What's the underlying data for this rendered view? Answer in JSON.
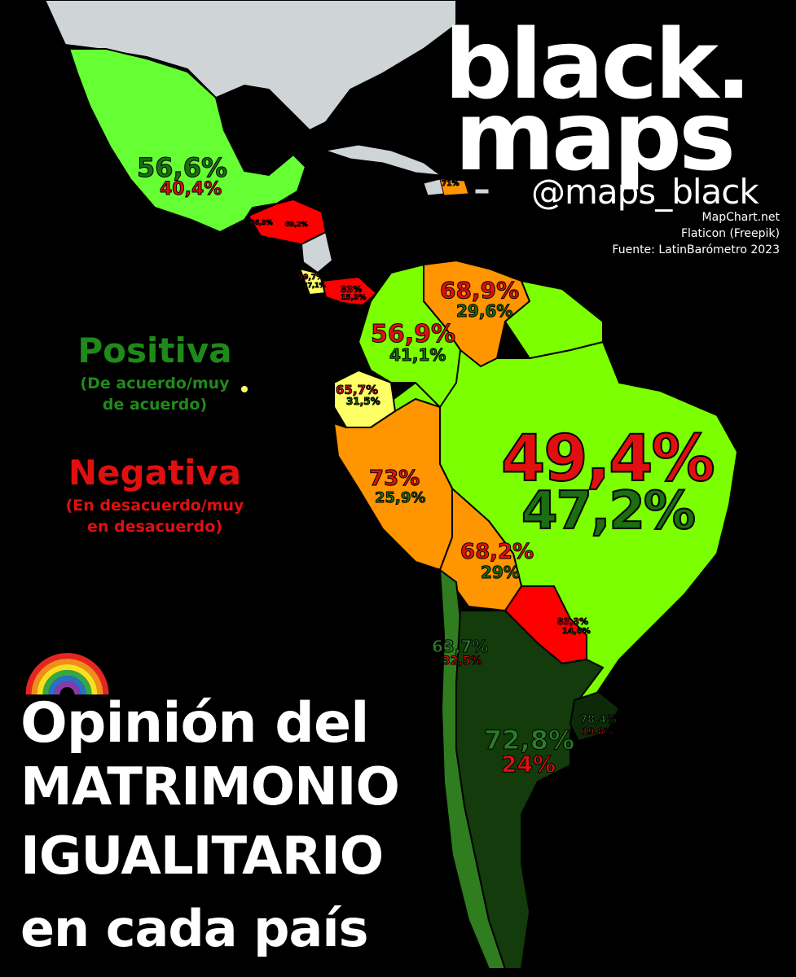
{
  "brand": {
    "line1": "black.",
    "line2": "maps",
    "handle": "@maps_black"
  },
  "credits": [
    "MapChart.net",
    "Flaticon (Freepik)",
    "Fuente: LatinBarómetro 2023"
  ],
  "legend": {
    "positive_title": "Positiva",
    "positive_desc_1": "(De acuerdo/muy",
    "positive_desc_2": "de acuerdo)",
    "negative_title": "Negativa",
    "negative_desc_1": "(En desacuerdo/muy",
    "negative_desc_2": "en desacuerdo)",
    "positive_color": "#1f8a1a",
    "negative_color": "#e01010"
  },
  "title": {
    "line1": "Opinión del",
    "line2": "MATRIMONIO",
    "line3": "IGUALITARIO",
    "line4": "en cada país"
  },
  "colors": {
    "background": "#000000",
    "north_america": "#cfd4d6",
    "light_green": "#7cff00",
    "orange": "#ff9500",
    "red": "#ff0000",
    "yellow": "#ffff66",
    "dark_green_1": "#2f7d1e",
    "dark_green_2": "#133b0b",
    "dark_green_3": "#0d2a08"
  },
  "countries": {
    "mexico": {
      "positive": "56,6%",
      "negative": "40,4%"
    },
    "dominican_republic": {
      "negative": "71%"
    },
    "guatemala": {
      "negative": "66,3%"
    },
    "honduras": {
      "negative": "69,2%"
    },
    "costa_rica": {
      "negative": "59,7%",
      "positive": "37,1%"
    },
    "panama": {
      "negative": "83%",
      "positive": "15,3%"
    },
    "venezuela": {
      "negative": "68,9%",
      "positive": "29,6%"
    },
    "colombia": {
      "negative": "56,9%",
      "positive": "41,1%"
    },
    "ecuador": {
      "negative": "65,7%",
      "positive": "31,5%"
    },
    "peru": {
      "negative": "73%",
      "positive": "25,9%"
    },
    "brazil": {
      "negative": "49,4%",
      "positive": "47,2%"
    },
    "bolivia": {
      "negative": "68,2%",
      "positive": "29%"
    },
    "paraguay": {
      "negative": "83,3%",
      "positive": "14,6%"
    },
    "chile": {
      "positive": "63,7%",
      "negative": "32,5%"
    },
    "argentina": {
      "positive": "72,8%",
      "negative": "24%"
    },
    "uruguay": {
      "positive": "78,4%",
      "negative": "19,8%"
    }
  },
  "icons": [
    "rainbow-icon"
  ]
}
